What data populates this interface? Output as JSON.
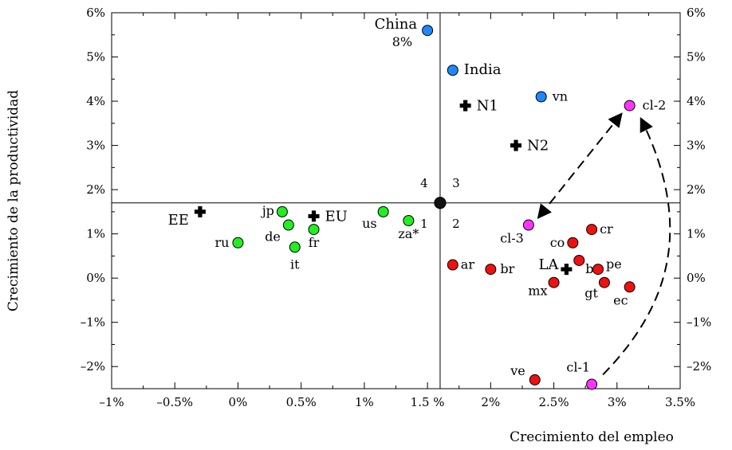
{
  "chart_data": {
    "type": "scatter",
    "title": "",
    "xlabel": "Crecimiento del empleo",
    "ylabel": "Crecimiento de la productividad",
    "xlim": [
      -1.0,
      3.5
    ],
    "ylim": [
      -2.5,
      6.0
    ],
    "x_ticks": [
      -1.0,
      -0.5,
      0.0,
      0.5,
      1.0,
      1.5,
      2.0,
      2.5,
      3.0,
      3.5
    ],
    "x_tick_labels": [
      "–1%",
      "–0.5%",
      "0%",
      "0.5%",
      "1%",
      "1.5 %",
      "2%",
      "2.5%",
      "3%",
      "3.5%"
    ],
    "y_ticks": [
      -2,
      -1,
      0,
      1,
      2,
      3,
      4,
      5,
      6
    ],
    "y_tick_labels": [
      "–2%",
      "–1%",
      "0%",
      "1%",
      "2%",
      "3%",
      "4%",
      "5%",
      "6%"
    ],
    "grid": false,
    "colors": {
      "asia": "#1e88ff",
      "developed": "#22ee22",
      "latin_america": "#ee1111",
      "chile": "#ff33ff",
      "aggregate": "#000000"
    },
    "reference_lines": {
      "x": 1.6,
      "y": 1.7
    },
    "quadrant_labels": [
      "1",
      "2",
      "3",
      "4"
    ],
    "points": [
      {
        "label": "China",
        "label2": "8%",
        "x": 1.5,
        "y": 5.6,
        "group": "asia"
      },
      {
        "label": "India",
        "x": 1.7,
        "y": 4.7,
        "group": "asia"
      },
      {
        "label": "vn",
        "x": 2.4,
        "y": 4.1,
        "group": "asia"
      },
      {
        "label": "N1",
        "x": 1.8,
        "y": 3.9,
        "group": "aggregate"
      },
      {
        "label": "N2",
        "x": 2.2,
        "y": 3.0,
        "group": "aggregate"
      },
      {
        "label": "cl-2",
        "x": 3.1,
        "y": 3.9,
        "group": "chile"
      },
      {
        "label": "cl-3",
        "x": 2.3,
        "y": 1.2,
        "group": "chile"
      },
      {
        "label": "cl-1",
        "x": 2.8,
        "y": -2.4,
        "group": "chile"
      },
      {
        "label": "EE",
        "x": -0.3,
        "y": 1.5,
        "group": "aggregate"
      },
      {
        "label": "EU",
        "x": 0.6,
        "y": 1.4,
        "group": "aggregate"
      },
      {
        "label": "LA",
        "x": 2.6,
        "y": 0.2,
        "group": "aggregate"
      },
      {
        "label": "jp",
        "x": 0.35,
        "y": 1.5,
        "group": "developed"
      },
      {
        "label": "de",
        "x": 0.4,
        "y": 1.2,
        "group": "developed"
      },
      {
        "label": "fr",
        "x": 0.6,
        "y": 1.1,
        "group": "developed"
      },
      {
        "label": "it",
        "x": 0.45,
        "y": 0.7,
        "group": "developed"
      },
      {
        "label": "ru",
        "x": 0.0,
        "y": 0.8,
        "group": "developed"
      },
      {
        "label": "us",
        "x": 1.15,
        "y": 1.5,
        "group": "developed"
      },
      {
        "label": "za*",
        "x": 1.35,
        "y": 1.3,
        "group": "developed"
      },
      {
        "label": "",
        "x": 1.6,
        "y": 1.7,
        "group": "center"
      },
      {
        "label": "ar",
        "x": 1.7,
        "y": 0.3,
        "group": "latin_america"
      },
      {
        "label": "br",
        "x": 2.0,
        "y": 0.2,
        "group": "latin_america"
      },
      {
        "label": "co",
        "x": 2.65,
        "y": 0.8,
        "group": "latin_america"
      },
      {
        "label": "cr",
        "x": 2.8,
        "y": 1.1,
        "group": "latin_america"
      },
      {
        "label": "bo",
        "x": 2.7,
        "y": 0.4,
        "group": "latin_america"
      },
      {
        "label": "pe",
        "x": 2.85,
        "y": 0.2,
        "group": "latin_america"
      },
      {
        "label": "mx",
        "x": 2.5,
        "y": -0.1,
        "group": "latin_america"
      },
      {
        "label": "gt",
        "x": 2.9,
        "y": -0.1,
        "group": "latin_america"
      },
      {
        "label": "ec",
        "x": 3.1,
        "y": -0.2,
        "group": "latin_america"
      },
      {
        "label": "ve",
        "x": 2.35,
        "y": -2.3,
        "group": "latin_america"
      }
    ]
  }
}
